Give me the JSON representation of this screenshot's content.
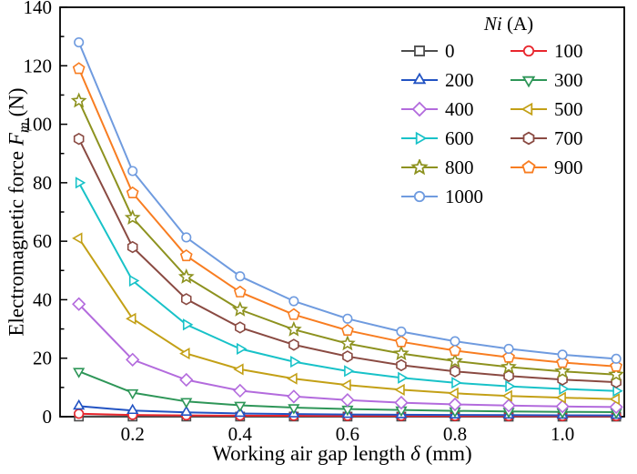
{
  "labels": {
    "y_prefix": "Electromagnetic force ",
    "y_symbol": "F",
    "y_sub": "m",
    "y_suffix": " (N)",
    "x_prefix": "Working air gap length ",
    "x_symbol": "δ",
    "x_suffix": " (mm)",
    "legend_symbol": "Ni",
    "legend_suffix": " (A)"
  },
  "chart_data": {
    "type": "line",
    "title": "",
    "xlabel": "Working air gap length δ (mm)",
    "ylabel": "Electromagnetic force Fm (N)",
    "legend_title": "Ni (A)",
    "legend_position": "top-right",
    "grid": false,
    "xlim": [
      0.065,
      1.115
    ],
    "ylim": [
      0,
      140
    ],
    "xticks": [
      0.2,
      0.4,
      0.6,
      0.8,
      1.0
    ],
    "xminor": [
      0.1,
      0.3,
      0.5,
      0.7,
      0.9,
      1.1
    ],
    "yticks": [
      0,
      20,
      40,
      60,
      80,
      100,
      120,
      140
    ],
    "yminor": [
      10,
      30,
      50,
      70,
      90,
      110,
      130
    ],
    "x": [
      0.1,
      0.2,
      0.3,
      0.4,
      0.5,
      0.6,
      0.7,
      0.8,
      0.9,
      1.0,
      1.1
    ],
    "series": [
      {
        "name": "0",
        "color": "#4d4d4d",
        "marker": "square",
        "values": [
          0.05,
          0.05,
          0.04,
          0.04,
          0.03,
          0.03,
          0.03,
          0.03,
          0.02,
          0.02,
          0.02
        ]
      },
      {
        "name": "100",
        "color": "#e8262d",
        "marker": "circle",
        "values": [
          1.0,
          0.6,
          0.45,
          0.35,
          0.3,
          0.26,
          0.23,
          0.2,
          0.18,
          0.17,
          0.16
        ]
      },
      {
        "name": "200",
        "color": "#2253c3",
        "marker": "triangle-up",
        "values": [
          3.6,
          2.1,
          1.5,
          1.1,
          0.9,
          0.75,
          0.65,
          0.58,
          0.52,
          0.48,
          0.45
        ]
      },
      {
        "name": "300",
        "color": "#2e9658",
        "marker": "triangle-down",
        "values": [
          15.5,
          8.2,
          5.2,
          3.9,
          3.1,
          2.6,
          2.3,
          2.0,
          1.8,
          1.65,
          1.55
        ]
      },
      {
        "name": "400",
        "color": "#b36bdd",
        "marker": "diamond",
        "values": [
          38.5,
          19.5,
          12.6,
          8.9,
          6.9,
          5.7,
          4.8,
          4.2,
          3.8,
          3.5,
          3.3
        ]
      },
      {
        "name": "500",
        "color": "#c3a016",
        "marker": "triangle-left",
        "values": [
          61.0,
          33.5,
          21.6,
          16.2,
          13.0,
          10.8,
          9.2,
          8.0,
          7.1,
          6.5,
          6.0
        ]
      },
      {
        "name": "600",
        "color": "#18c2c8",
        "marker": "triangle-right",
        "values": [
          80.0,
          46.5,
          31.5,
          23.2,
          18.8,
          15.6,
          13.3,
          11.6,
          10.4,
          9.5,
          8.8
        ]
      },
      {
        "name": "700",
        "color": "#8a4a42",
        "marker": "hexagon",
        "values": [
          95.0,
          58.0,
          40.2,
          30.5,
          24.6,
          20.6,
          17.6,
          15.5,
          13.9,
          12.7,
          11.8
        ]
      },
      {
        "name": "800",
        "color": "#8d921f",
        "marker": "star",
        "values": [
          108.0,
          68.0,
          47.8,
          36.6,
          29.8,
          25.0,
          21.6,
          19.0,
          17.0,
          15.5,
          14.4
        ]
      },
      {
        "name": "900",
        "color": "#f87d21",
        "marker": "pentagon",
        "values": [
          119.0,
          76.5,
          55.0,
          42.6,
          34.9,
          29.5,
          25.6,
          22.6,
          20.3,
          18.5,
          17.2
        ]
      },
      {
        "name": "1000",
        "color": "#6f9bdf",
        "marker": "circle",
        "values": [
          128.0,
          84.0,
          61.3,
          48.0,
          39.5,
          33.5,
          29.1,
          25.8,
          23.2,
          21.2,
          19.8
        ]
      }
    ]
  }
}
